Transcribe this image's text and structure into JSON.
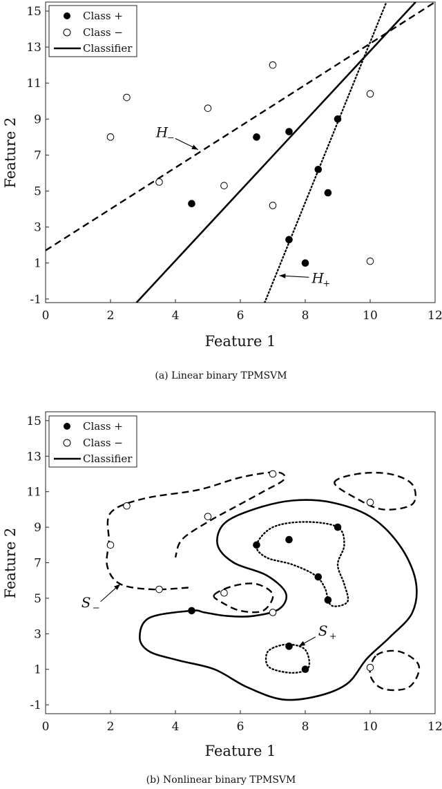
{
  "chart_data": [
    {
      "type": "scatter",
      "caption": "(a) Linear binary TPMSVM",
      "xlabel": "Feature 1",
      "ylabel": "Feature 2",
      "xlim": [
        0,
        12
      ],
      "ylim": [
        -1.2,
        15.5
      ],
      "xticks": [
        0,
        2,
        4,
        6,
        8,
        10,
        12
      ],
      "yticks": [
        -1,
        1,
        3,
        5,
        7,
        9,
        11,
        13,
        15
      ],
      "legend": {
        "position": "top-left",
        "entries": [
          "Class +",
          "Class −",
          "Classifier"
        ]
      },
      "series": [
        {
          "name": "Class +",
          "marker": "filled-circle",
          "points": [
            [
              4.5,
              4.3
            ],
            [
              6.5,
              8.0
            ],
            [
              7.5,
              8.3
            ],
            [
              7.5,
              2.3
            ],
            [
              8.0,
              1.0
            ],
            [
              8.4,
              6.2
            ],
            [
              8.7,
              4.9
            ],
            [
              9.0,
              9.0
            ]
          ]
        },
        {
          "name": "Class −",
          "marker": "open-circle",
          "points": [
            [
              2.0,
              8.0
            ],
            [
              2.5,
              10.2
            ],
            [
              3.5,
              5.5
            ],
            [
              5.0,
              9.6
            ],
            [
              5.5,
              5.3
            ],
            [
              7.0,
              4.2
            ],
            [
              7.0,
              12.0
            ],
            [
              10.0,
              10.4
            ],
            [
              10.0,
              1.1
            ]
          ]
        }
      ],
      "lines": [
        {
          "name": "Classifier",
          "style": "solid",
          "points": [
            [
              2.8,
              -1.2
            ],
            [
              11.4,
              15.5
            ]
          ]
        },
        {
          "name": "H_−",
          "style": "dashed",
          "points": [
            [
              0.0,
              1.7
            ],
            [
              12.0,
              15.5
            ]
          ]
        },
        {
          "name": "H_+",
          "style": "dotted",
          "points": [
            [
              6.75,
              -1.2
            ],
            [
              10.5,
              15.5
            ]
          ]
        }
      ],
      "annotations": [
        {
          "label": "H",
          "sub": "−",
          "text_at": [
            3.4,
            8.0
          ],
          "arrow_to": [
            4.7,
            7.3
          ]
        },
        {
          "label": "H",
          "sub": "+",
          "text_at": [
            8.2,
            -0.1
          ],
          "arrow_to": [
            7.2,
            0.3
          ]
        }
      ]
    },
    {
      "type": "scatter",
      "caption": "(b) Nonlinear binary TPMSVM",
      "xlabel": "Feature 1",
      "ylabel": "Feature 2",
      "xlim": [
        0,
        12
      ],
      "ylim": [
        -1.5,
        15.5
      ],
      "xticks": [
        0,
        2,
        4,
        6,
        8,
        10,
        12
      ],
      "yticks": [
        -1,
        1,
        3,
        5,
        7,
        9,
        11,
        13,
        15
      ],
      "legend": {
        "position": "top-left",
        "entries": [
          "Class +",
          "Class −",
          "Classifier"
        ]
      },
      "series": [
        {
          "name": "Class +",
          "marker": "filled-circle",
          "points": [
            [
              4.5,
              4.3
            ],
            [
              6.5,
              8.0
            ],
            [
              7.5,
              8.3
            ],
            [
              7.5,
              2.3
            ],
            [
              8.0,
              1.0
            ],
            [
              8.4,
              6.2
            ],
            [
              8.7,
              4.9
            ],
            [
              9.0,
              9.0
            ]
          ]
        },
        {
          "name": "Class −",
          "marker": "open-circle",
          "points": [
            [
              2.0,
              8.0
            ],
            [
              2.5,
              10.2
            ],
            [
              3.5,
              5.5
            ],
            [
              5.0,
              9.6
            ],
            [
              5.5,
              5.3
            ],
            [
              7.0,
              4.2
            ],
            [
              7.0,
              12.0
            ],
            [
              10.0,
              10.4
            ],
            [
              10.0,
              1.1
            ]
          ]
        }
      ],
      "curves": [
        {
          "name": "Classifier",
          "style": "solid",
          "closed": true,
          "points": [
            [
              4.5,
              4.3
            ],
            [
              3.2,
              3.9
            ],
            [
              2.9,
              2.8
            ],
            [
              3.2,
              2.0
            ],
            [
              4.1,
              1.5
            ],
            [
              5.2,
              1.0
            ],
            [
              6.2,
              0.0
            ],
            [
              7.3,
              -0.7
            ],
            [
              8.4,
              -0.5
            ],
            [
              9.3,
              0.2
            ],
            [
              9.9,
              1.6
            ],
            [
              10.6,
              2.8
            ],
            [
              11.3,
              4.2
            ],
            [
              11.4,
              6.0
            ],
            [
              10.9,
              8.0
            ],
            [
              10.0,
              9.6
            ],
            [
              8.8,
              10.4
            ],
            [
              7.6,
              10.5
            ],
            [
              6.4,
              10.0
            ],
            [
              5.5,
              9.2
            ],
            [
              5.3,
              8.0
            ],
            [
              5.8,
              7.0
            ],
            [
              6.8,
              6.3
            ],
            [
              7.4,
              5.3
            ],
            [
              7.2,
              4.4
            ],
            [
              6.4,
              4.0
            ],
            [
              5.6,
              4.0
            ],
            [
              4.9,
              4.2
            ]
          ]
        },
        {
          "name": "S_− (outer)",
          "style": "dashed",
          "closed": false,
          "points": [
            [
              4.4,
              5.6
            ],
            [
              3.3,
              5.5
            ],
            [
              2.3,
              5.8
            ],
            [
              1.9,
              6.8
            ],
            [
              1.95,
              8.2
            ],
            [
              2.0,
              9.8
            ],
            [
              3.0,
              10.6
            ],
            [
              4.7,
              11.1
            ],
            [
              6.0,
              11.8
            ],
            [
              7.1,
              12.1
            ],
            [
              7.35,
              11.7
            ],
            [
              6.7,
              11.0
            ],
            [
              5.9,
              10.2
            ],
            [
              5.0,
              9.3
            ],
            [
              4.2,
              8.3
            ],
            [
              4.0,
              7.3
            ]
          ]
        },
        {
          "name": "S_− (small)",
          "style": "dashed",
          "closed": true,
          "points": [
            [
              5.2,
              5.2
            ],
            [
              5.8,
              5.7
            ],
            [
              6.5,
              5.8
            ],
            [
              7.0,
              5.2
            ],
            [
              6.7,
              4.3
            ],
            [
              6.0,
              4.3
            ],
            [
              5.4,
              4.8
            ]
          ]
        },
        {
          "name": "S_− (top-right)",
          "style": "dashed",
          "closed": true,
          "points": [
            [
              8.9,
              11.5
            ],
            [
              9.6,
              12.0
            ],
            [
              10.6,
              12.0
            ],
            [
              11.3,
              11.4
            ],
            [
              11.3,
              10.3
            ],
            [
              10.4,
              10.0
            ],
            [
              9.6,
              10.6
            ]
          ]
        },
        {
          "name": "S_− (bottom-right)",
          "style": "dashed",
          "closed": true,
          "points": [
            [
              10.2,
              1.8
            ],
            [
              10.9,
              2.0
            ],
            [
              11.5,
              1.2
            ],
            [
              11.2,
              0.0
            ],
            [
              10.4,
              -0.1
            ],
            [
              10.0,
              0.7
            ]
          ]
        },
        {
          "name": "S_+ (large)",
          "style": "dotted",
          "closed": true,
          "points": [
            [
              6.5,
              8.0
            ],
            [
              7.0,
              9.0
            ],
            [
              8.0,
              9.3
            ],
            [
              9.0,
              9.0
            ],
            [
              9.2,
              8.0
            ],
            [
              9.0,
              6.9
            ],
            [
              9.2,
              5.8
            ],
            [
              9.3,
              4.8
            ],
            [
              8.8,
              4.6
            ],
            [
              8.6,
              5.6
            ],
            [
              8.3,
              6.3
            ],
            [
              7.6,
              6.9
            ],
            [
              6.8,
              7.3
            ]
          ]
        },
        {
          "name": "S_+ (small)",
          "style": "dotted",
          "closed": true,
          "points": [
            [
              7.0,
              2.2
            ],
            [
              7.5,
              2.4
            ],
            [
              8.0,
              2.1
            ],
            [
              8.1,
              1.1
            ],
            [
              7.6,
              0.8
            ],
            [
              6.9,
              1.1
            ],
            [
              6.8,
              1.8
            ]
          ]
        }
      ],
      "annotations": [
        {
          "label": "S",
          "sub": "−",
          "text_at": [
            1.1,
            4.5
          ],
          "arrow_to": [
            2.3,
            5.8
          ]
        },
        {
          "label": "S",
          "sub": "+",
          "text_at": [
            8.4,
            2.9
          ],
          "arrow_to": [
            7.8,
            2.3
          ]
        }
      ]
    }
  ]
}
